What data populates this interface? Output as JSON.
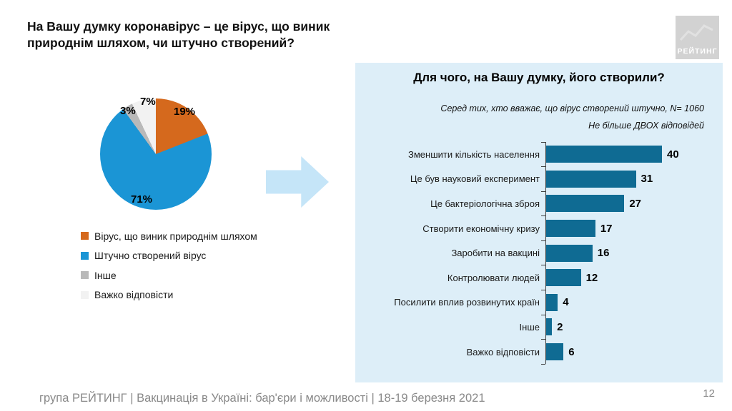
{
  "slide": {
    "footer": "група РЕЙТИНГ | Вакцинація в Україні: бар'єри і можливості | 18-19 березня 2021",
    "page_number": "12",
    "logo_text": "РЕЙТИНГ"
  },
  "chart_data": [
    {
      "type": "pie",
      "title": "На Вашу думку коронавірус – це вірус, що виник природнім шляхом, чи штучно створений?",
      "labels": [
        "Вірус, що виник природнім шляхом",
        "Штучно створений вірус",
        "Інше",
        "Важко відповісти"
      ],
      "values": [
        19,
        71,
        3,
        7
      ],
      "value_labels": [
        "19%",
        "71%",
        "3%",
        "7%"
      ],
      "colors": [
        "#d5691d",
        "#1b95d5",
        "#b9b9b9",
        "#f2f2f2"
      ],
      "start_angle_deg": 0,
      "direction": "clockwise",
      "legend_position": "bottom-left"
    },
    {
      "type": "bar",
      "orientation": "horizontal",
      "title": "Для чого, на Вашу думку, його створили?",
      "subtitles": [
        "Серед тих, хто вважає, що вірус створений штучно, N= 1060",
        "Не більше ДВОХ відповідей"
      ],
      "categories": [
        "Зменшити кількість населення",
        "Це був науковий експеримент",
        "Це бактеріологічна зброя",
        "Створити економічну кризу",
        "Заробити на вакцині",
        "Контролювати людей",
        "Посилити вплив розвинутих країн",
        "Інше",
        "Важко відповісти"
      ],
      "values": [
        40,
        31,
        27,
        17,
        16,
        12,
        4,
        2,
        6
      ],
      "xlim": [
        0,
        45
      ],
      "bar_color": "#0f6b93",
      "panel_bg": "#ddeef8",
      "arrow_color": "#c5e5f8",
      "value_labels_shown": true,
      "grid": false
    }
  ]
}
